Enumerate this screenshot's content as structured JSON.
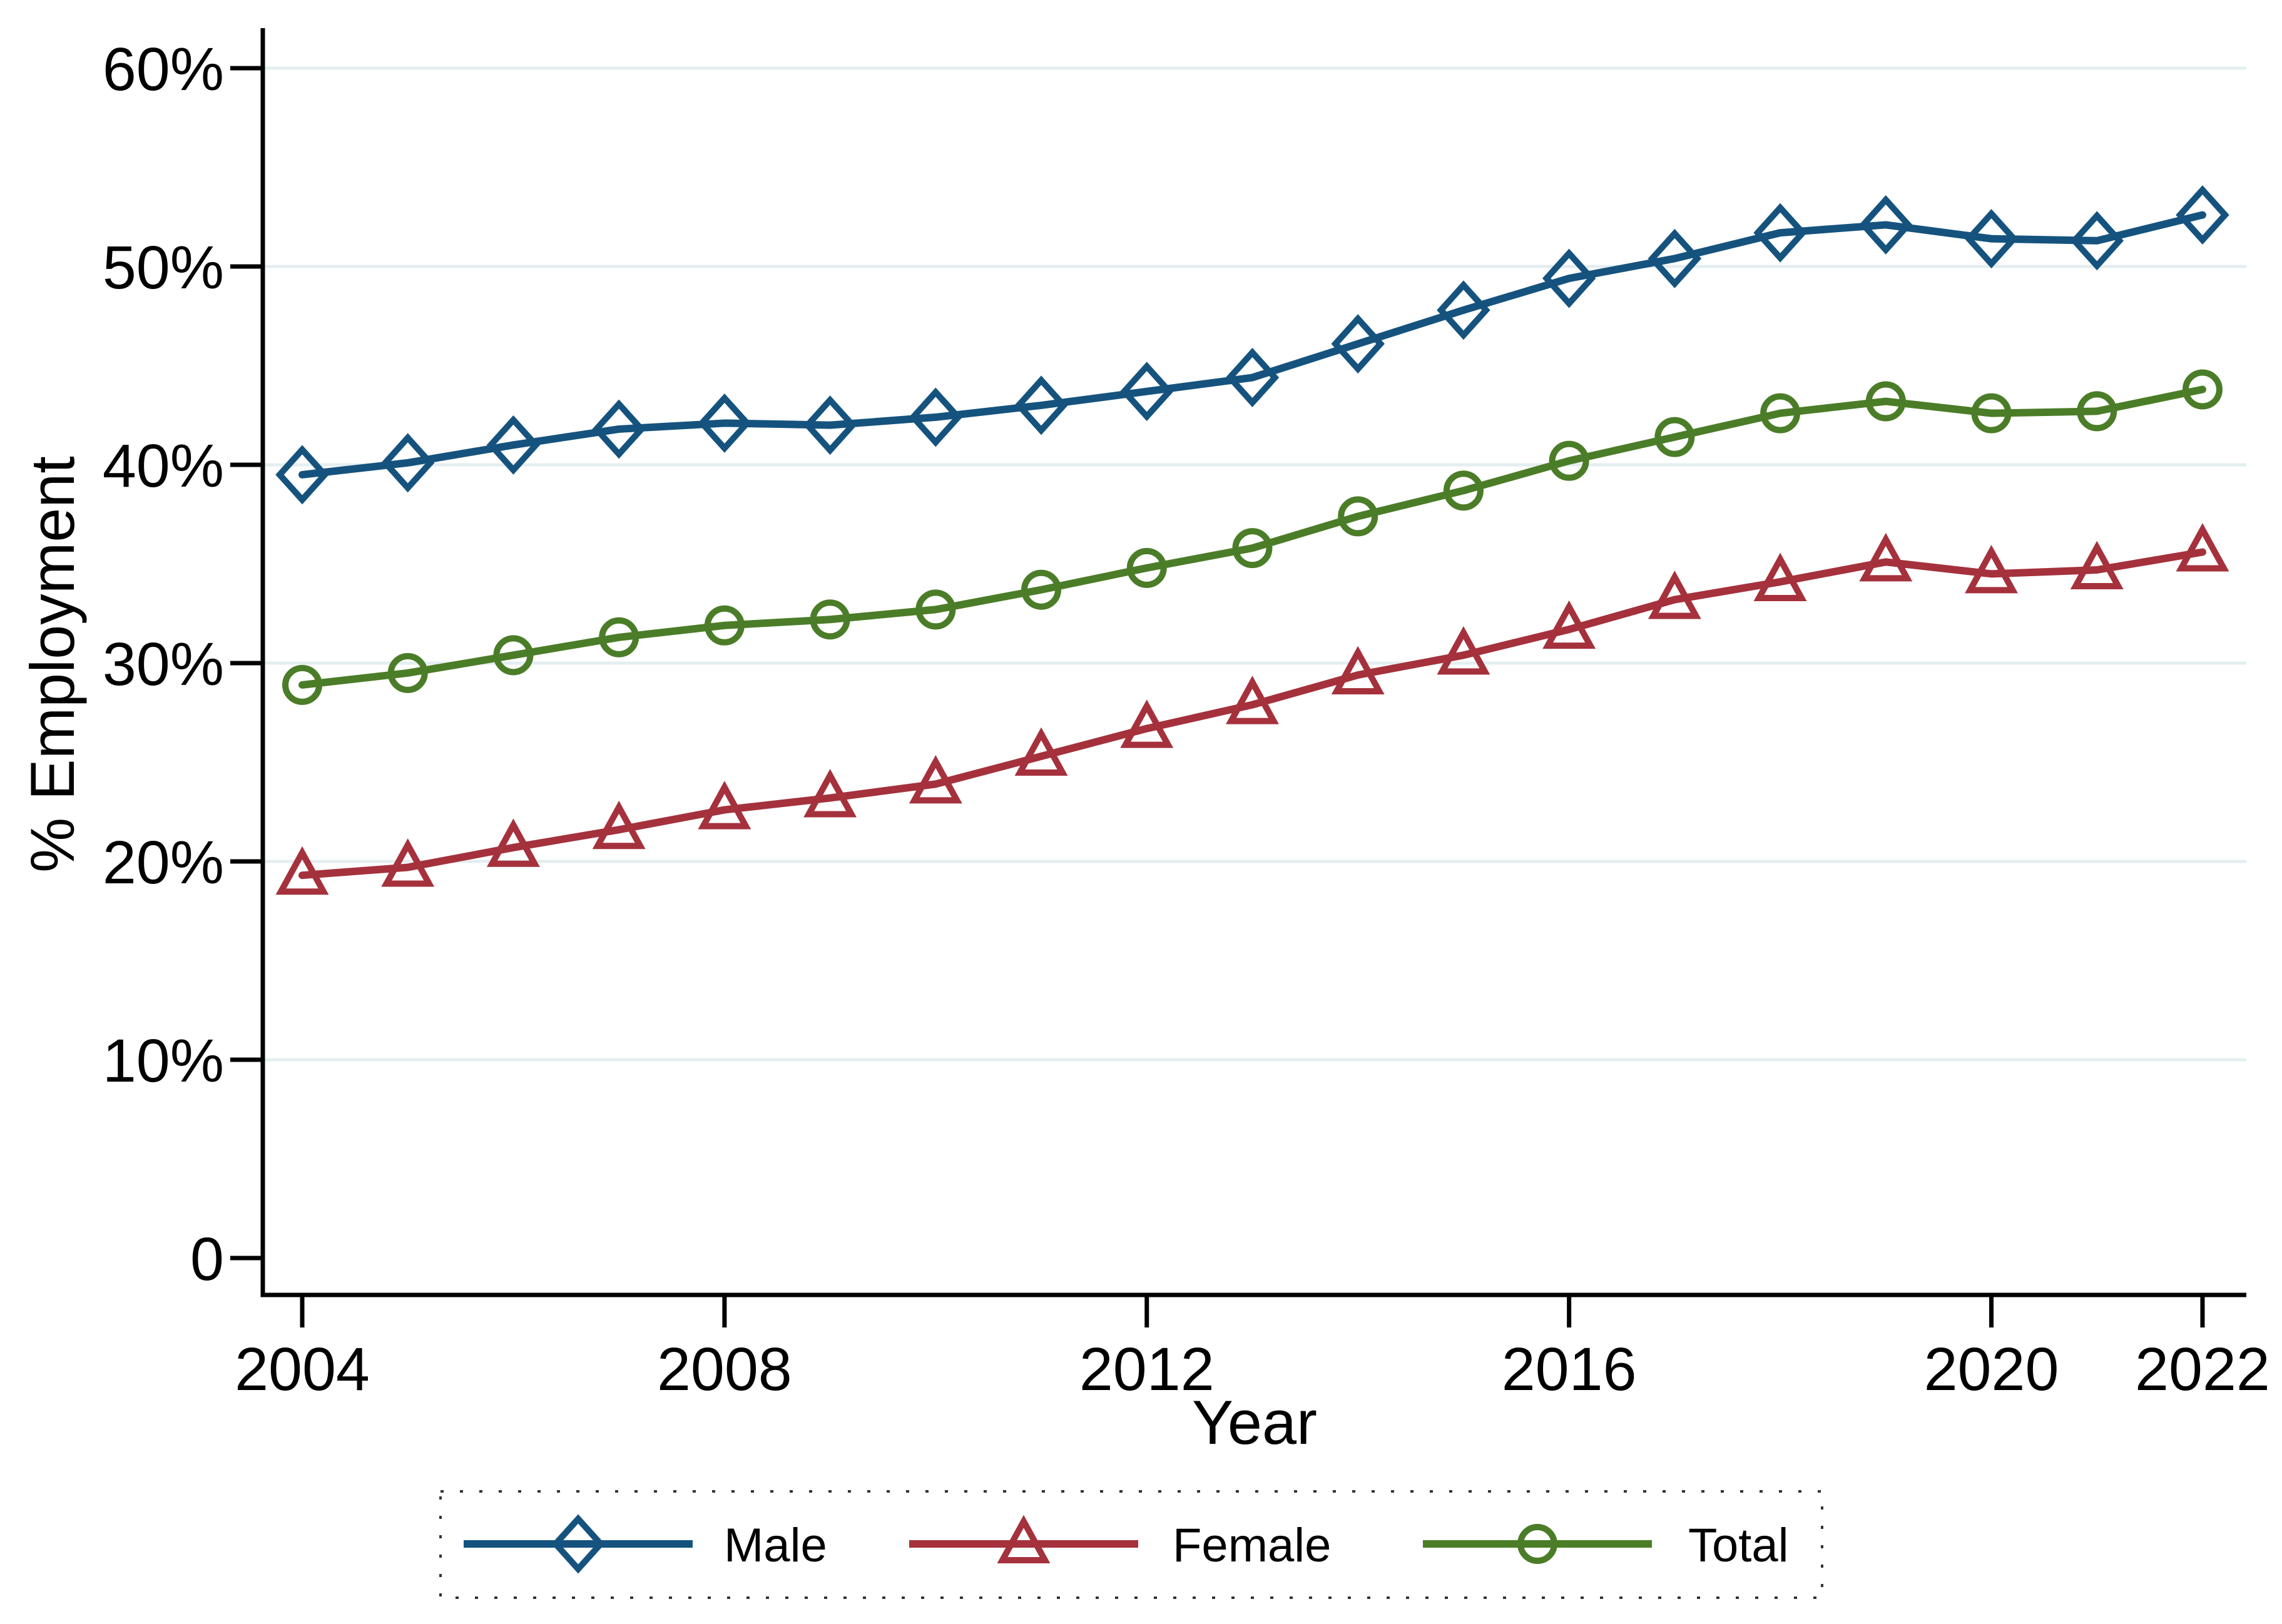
{
  "chart_data": {
    "type": "line",
    "title": "",
    "xlabel": "Year",
    "ylabel": "% Employment",
    "x": [
      2004,
      2005,
      2006,
      2007,
      2008,
      2009,
      2010,
      2011,
      2012,
      2013,
      2014,
      2015,
      2016,
      2017,
      2018,
      2019,
      2020,
      2021,
      2022
    ],
    "series": [
      {
        "name": "Male",
        "marker": "diamond",
        "color": "#15537E",
        "values": [
          39.5,
          40.1,
          41.0,
          41.8,
          42.1,
          42.0,
          42.4,
          43.0,
          43.7,
          44.4,
          46.1,
          47.8,
          49.4,
          50.4,
          51.7,
          52.1,
          51.4,
          51.3,
          52.6
        ]
      },
      {
        "name": "Female",
        "marker": "triangle",
        "color": "#A5313C",
        "values": [
          19.3,
          19.7,
          20.7,
          21.6,
          22.6,
          23.2,
          23.9,
          25.3,
          26.7,
          27.9,
          29.4,
          30.4,
          31.7,
          33.2,
          34.1,
          35.1,
          34.5,
          34.7,
          35.6
        ]
      },
      {
        "name": "Total",
        "marker": "circle",
        "color": "#4B7D28",
        "values": [
          28.9,
          29.5,
          30.4,
          31.3,
          31.9,
          32.2,
          32.7,
          33.7,
          34.8,
          35.8,
          37.4,
          38.7,
          40.2,
          41.4,
          42.6,
          43.2,
          42.6,
          42.7,
          43.8
        ]
      }
    ],
    "yticks": [
      {
        "v": 0,
        "label": "0"
      },
      {
        "v": 10,
        "label": "10%"
      },
      {
        "v": 20,
        "label": "20%"
      },
      {
        "v": 30,
        "label": "30%"
      },
      {
        "v": 40,
        "label": "40%"
      },
      {
        "v": 50,
        "label": "50%"
      },
      {
        "v": 60,
        "label": "60%"
      }
    ],
    "xticks": [
      {
        "year": 2004,
        "label": "2004"
      },
      {
        "year": 2008,
        "label": "2008"
      },
      {
        "year": 2012,
        "label": "2012"
      },
      {
        "year": 2016,
        "label": "2016"
      },
      {
        "year": 2020,
        "label": "2020"
      },
      {
        "year": 2022,
        "label": "2022"
      }
    ],
    "ylim": [
      0,
      62
    ],
    "grid": "horizontal",
    "legend_position": "bottom",
    "grid_color": "#E4EEF1",
    "axis_color": "#000000",
    "background_color": "#FFFFFF",
    "legend_border_color": "#333333"
  }
}
